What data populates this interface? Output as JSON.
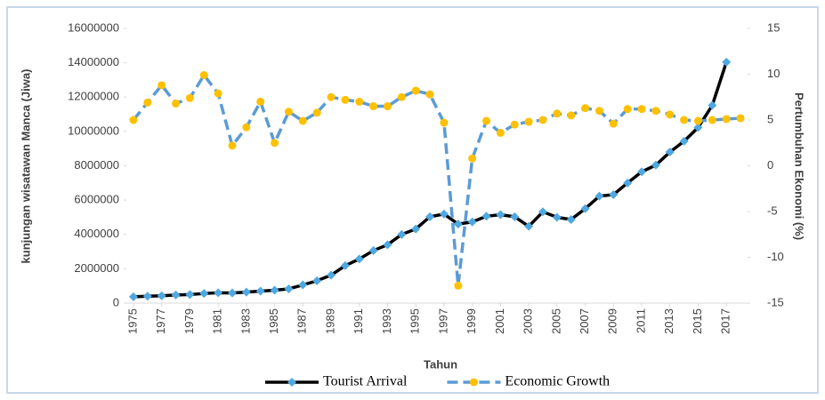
{
  "chart_data": {
    "type": "line",
    "x_label": "Tahun",
    "y_label": "kunjungan wisatawan Manca (Jiwa)",
    "y2_label": "Pertumbuhan Ekonomi (%)",
    "x": [
      1975,
      1976,
      1977,
      1978,
      1979,
      1980,
      1981,
      1982,
      1983,
      1984,
      1985,
      1986,
      1987,
      1988,
      1989,
      1990,
      1991,
      1992,
      1993,
      1994,
      1995,
      1996,
      1997,
      1998,
      1999,
      2000,
      2001,
      2002,
      2003,
      2004,
      2005,
      2006,
      2007,
      2008,
      2009,
      2010,
      2011,
      2012,
      2013,
      2014,
      2015,
      2016,
      2017,
      2018
    ],
    "xlim": [
      1974.5,
      2018.5
    ],
    "xticks": [
      1975,
      1977,
      1979,
      1981,
      1983,
      1985,
      1987,
      1989,
      1991,
      1993,
      1995,
      1997,
      1999,
      2001,
      2003,
      2005,
      2007,
      2009,
      2011,
      2013,
      2015,
      2017
    ],
    "ylim": [
      0,
      16000000
    ],
    "yticks": [
      0,
      2000000,
      4000000,
      6000000,
      8000000,
      10000000,
      12000000,
      14000000,
      16000000
    ],
    "y2lim": [
      -15,
      15
    ],
    "y2ticks": [
      -15,
      -10,
      -5,
      0,
      5,
      10,
      15
    ],
    "legend": "bottom",
    "series": [
      {
        "name": "Tourist Arrival",
        "color": "#000000",
        "marker_color": "#4fa8e0",
        "marker": "diamond",
        "dash": false,
        "values": [
          370000,
          400000,
          430000,
          470000,
          500000,
          560000,
          600000,
          590000,
          640000,
          700000,
          750000,
          830000,
          1060000,
          1300000,
          1630000,
          2180000,
          2570000,
          3060000,
          3400000,
          4000000,
          4320000,
          5030000,
          5190000,
          4600000,
          4730000,
          5060000,
          5150000,
          5030000,
          4470000,
          5320000,
          5000000,
          4870000,
          5500000,
          6230000,
          6320000,
          7000000,
          7650000,
          8040000,
          8800000,
          9430000,
          10230000,
          11520000,
          14040000,
          null
        ]
      },
      {
        "name": "Economic Growth",
        "color": "#5b9bd5",
        "marker_color": "#ffc000",
        "marker": "circle",
        "dash": true,
        "axis": "y2",
        "values": [
          5.0,
          6.9,
          8.8,
          6.8,
          7.4,
          9.9,
          7.9,
          2.2,
          4.2,
          7.0,
          2.5,
          5.9,
          4.9,
          5.8,
          7.5,
          7.2,
          7.0,
          6.5,
          6.5,
          7.5,
          8.2,
          7.8,
          4.7,
          -13.1,
          0.8,
          4.9,
          3.6,
          4.5,
          4.8,
          5.0,
          5.7,
          5.5,
          6.3,
          6.0,
          4.6,
          6.2,
          6.2,
          6.0,
          5.6,
          5.0,
          4.9,
          5.0,
          5.1,
          5.2
        ]
      }
    ]
  }
}
